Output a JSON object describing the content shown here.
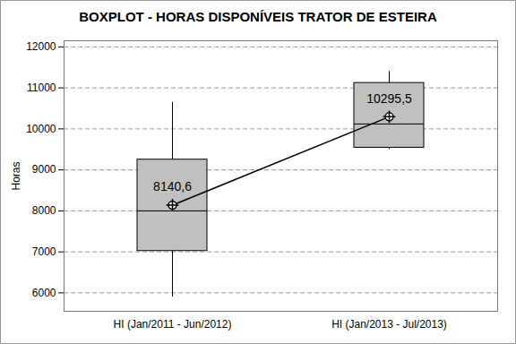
{
  "chart_data": {
    "type": "boxplot",
    "title": "BOXPLOT - HORAS DISPONÍVEIS TRATOR DE ESTEIRA",
    "y_label": "Horas",
    "categories": [
      "HI (Jan/2011 - Jun/2012)",
      "HI (Jan/2013 - Jul/2013)"
    ],
    "whisker_low": [
      5900,
      9500
    ],
    "q1": [
      7020,
      9540
    ],
    "median": [
      8000,
      10120
    ],
    "q3": [
      9250,
      11120
    ],
    "whisker_high": [
      10650,
      11400
    ],
    "values": [
      8140.6,
      10295.5
    ],
    "value_labels": [
      "8140,6",
      "10295,5"
    ],
    "data_labels": true,
    "color": "#c0c0c0",
    "ylim": [
      5550,
      12150
    ],
    "yticks": [
      6000,
      7000,
      8000,
      9000,
      10000,
      11000,
      12000
    ],
    "grid": true
  }
}
